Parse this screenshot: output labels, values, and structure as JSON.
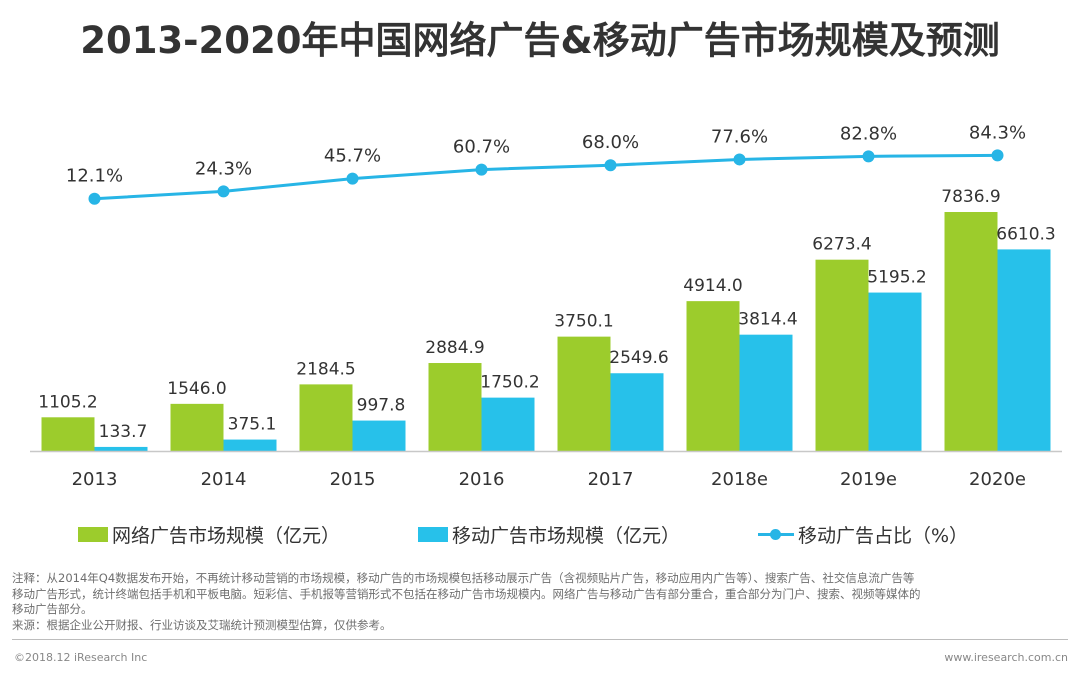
{
  "colors": {
    "green": "#9ccc2c",
    "blue": "#27c1ea",
    "line": "#27b5e6"
  },
  "chart_data": {
    "type": "bar",
    "title": "2013-2020年中国网络广告&移动广告市场规模及预测",
    "categories": [
      "2013",
      "2014",
      "2015",
      "2016",
      "2017",
      "2018e",
      "2019e",
      "2020e"
    ],
    "series": [
      {
        "name": "网络广告市场规模（亿元）",
        "type": "bar",
        "values": [
          1105.2,
          1546.0,
          2184.5,
          2884.9,
          3750.1,
          4914.0,
          6273.4,
          7836.9
        ],
        "labels": [
          "1105.2",
          "1546.0",
          "2184.5",
          "2884.9",
          "3750.1",
          "4914.0",
          "6273.4",
          "7836.9"
        ]
      },
      {
        "name": "移动广告市场规模（亿元）",
        "type": "bar",
        "values": [
          133.7,
          375.1,
          997.8,
          1750.2,
          2549.6,
          3814.4,
          5195.2,
          6610.3
        ],
        "labels": [
          "133.7",
          "375.1",
          "997.8",
          "1750.2",
          "2549.6",
          "3814.4",
          "5195.2",
          "6610.3"
        ]
      },
      {
        "name": "移动广告占比（%）",
        "type": "line",
        "values": [
          12.1,
          24.3,
          45.7,
          60.7,
          68.0,
          77.6,
          82.8,
          84.3
        ],
        "labels": [
          "12.1%",
          "24.3%",
          "45.7%",
          "60.7%",
          "68.0%",
          "77.6%",
          "82.8%",
          "84.3%"
        ]
      }
    ],
    "legend_position": "bottom",
    "grid": false
  },
  "legend": {
    "bar1": "网络广告市场规模（亿元）",
    "bar2": "移动广告市场规模（亿元）",
    "line": "移动广告占比（%）"
  },
  "notes": {
    "line1": "注释：从2014年Q4数据发布开始，不再统计移动营销的市场规模，移动广告的市场规模包括移动展示广告（含视频贴片广告，移动应用内广告等）、搜索广告、社交信息流广告等",
    "line2": "移动广告形式，统计终端包括手机和平板电脑。短彩信、手机报等营销形式不包括在移动广告市场规模内。网络广告与移动广告有部分重合，重合部分为门户、搜索、视频等媒体的",
    "line3": "移动广告部分。",
    "source": "来源：根据企业公开财报、行业访谈及艾瑞统计预测模型估算，仅供参考。"
  },
  "footer": {
    "copyright": "©2018.12 iResearch Inc",
    "website": "www.iresearch.com.cn"
  }
}
